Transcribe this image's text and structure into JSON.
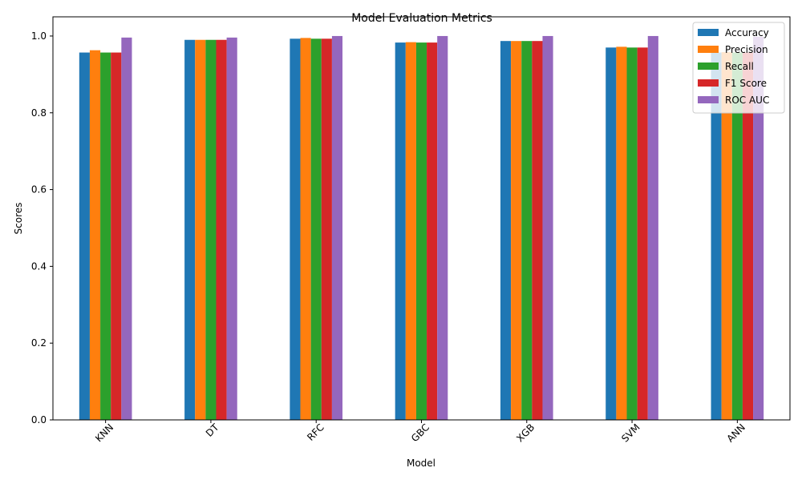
{
  "chart_data": {
    "type": "bar",
    "title": "Model Evaluation Metrics",
    "xlabel": "Model",
    "ylabel": "Scores",
    "categories": [
      "KNN",
      "DT",
      "RFC",
      "GBC",
      "XGB",
      "SVM",
      "ANN"
    ],
    "series": [
      {
        "name": "Accuracy",
        "color": "#1f77b4",
        "values": [
          0.957,
          0.99,
          0.993,
          0.983,
          0.987,
          0.97,
          0.957
        ]
      },
      {
        "name": "Precision",
        "color": "#ff7f0e",
        "values": [
          0.963,
          0.99,
          0.995,
          0.984,
          0.987,
          0.972,
          0.958
        ]
      },
      {
        "name": "Recall",
        "color": "#2ca02c",
        "values": [
          0.957,
          0.99,
          0.993,
          0.983,
          0.987,
          0.97,
          0.957
        ]
      },
      {
        "name": "F1 Score",
        "color": "#d62728",
        "values": [
          0.957,
          0.99,
          0.993,
          0.983,
          0.987,
          0.97,
          0.957
        ]
      },
      {
        "name": "ROC AUC",
        "color": "#9467bd",
        "values": [
          0.996,
          0.996,
          1.0,
          1.0,
          1.0,
          1.0,
          0.998
        ]
      }
    ],
    "ylim": [
      0,
      1.05
    ],
    "yticks": [
      0.0,
      0.2,
      0.4,
      0.6,
      0.8,
      1.0
    ],
    "ytick_labels": [
      "0.0",
      "0.2",
      "0.4",
      "0.6",
      "0.8",
      "1.0"
    ],
    "xtick_rotation": "45deg",
    "grid": false,
    "legend_position": "top-right"
  }
}
